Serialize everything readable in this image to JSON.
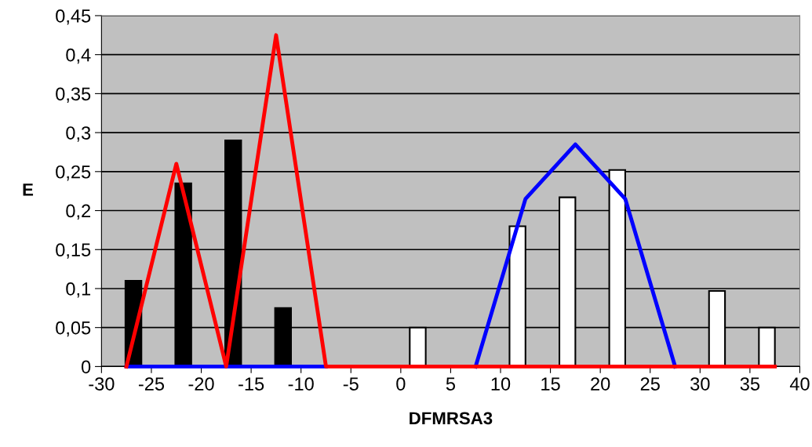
{
  "chart_data": {
    "type": "bar",
    "xlabel": "DFMRSA3",
    "ylabel": "E",
    "series": [
      {
        "color": "#000000",
        "x": [
          -26.8,
          -21.8,
          -16.8,
          -11.8
        ],
        "values": [
          0.11,
          0.235,
          0.29,
          0.075
        ]
      },
      {
        "color": "#ffffff",
        "x": [
          1.7,
          11.7,
          16.7,
          21.7,
          31.7,
          36.7
        ],
        "values": [
          0.05,
          0.18,
          0.217,
          0.252,
          0.097,
          0.05
        ]
      },
      {
        "type": "line",
        "color": "#0000ff",
        "x": [
          -27.5,
          -22.5,
          -17.5,
          -12.5,
          -7.5,
          -2.5,
          2.5,
          7.5,
          12.5,
          17.5,
          22.5,
          27.5
        ],
        "values": [
          0,
          0,
          0,
          0,
          0,
          null,
          null,
          0,
          0.215,
          0.285,
          0.215,
          0
        ]
      },
      {
        "type": "line",
        "color": "#ff0000",
        "x": [
          -27.5,
          -22.5,
          -17.5,
          -12.5,
          -7.5,
          -2.5,
          2.5,
          7.5,
          12.5,
          17.5,
          22.5,
          27.5,
          32.5,
          37.5
        ],
        "values": [
          0,
          0.26,
          0,
          0.425,
          0,
          0,
          0,
          0,
          0,
          0,
          0,
          0,
          0,
          0
        ]
      }
    ],
    "xlim": [
      -30,
      40
    ],
    "xticks": [
      -30,
      -25,
      -20,
      -15,
      -10,
      -5,
      0,
      5,
      10,
      15,
      20,
      25,
      30,
      35,
      40
    ],
    "ylim": [
      0,
      0.45
    ],
    "yticks": [
      {
        "value": 0,
        "label": "0"
      },
      {
        "value": 0.05,
        "label": "0,05"
      },
      {
        "value": 0.1,
        "label": "0,1"
      },
      {
        "value": 0.15,
        "label": "0,15"
      },
      {
        "value": 0.2,
        "label": "0,2"
      },
      {
        "value": 0.25,
        "label": "0,25"
      },
      {
        "value": 0.3,
        "label": "0,3"
      },
      {
        "value": 0.35,
        "label": "0,35"
      },
      {
        "value": 0.4,
        "label": "0,4"
      },
      {
        "value": 0.45,
        "label": "0,45"
      }
    ],
    "grid": "y"
  }
}
